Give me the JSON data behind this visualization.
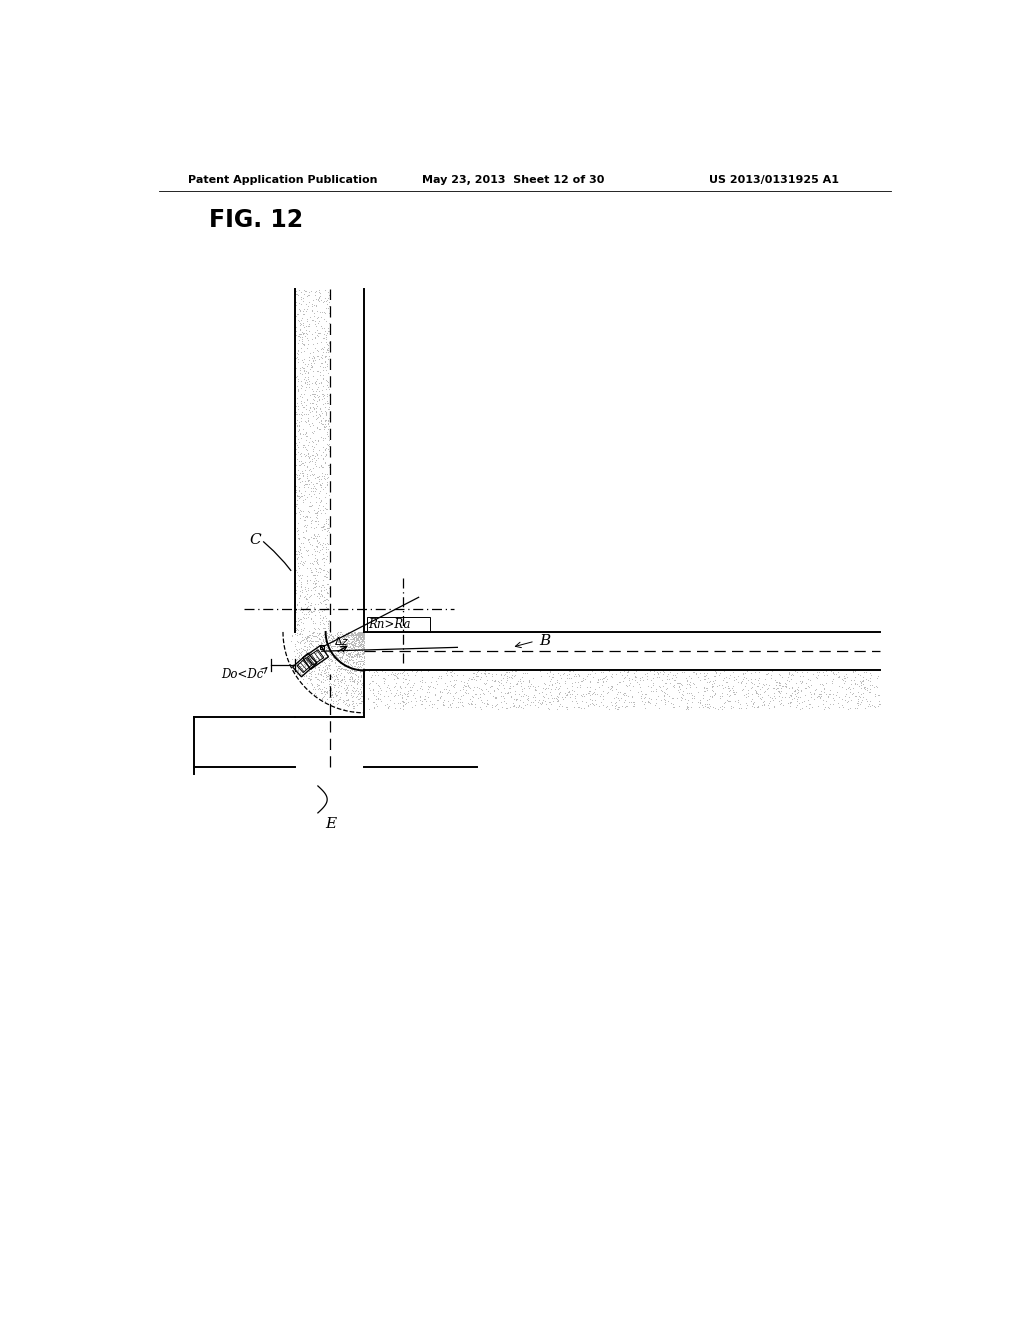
{
  "header_left": "Patent Application Publication",
  "header_middle": "May 23, 2013  Sheet 12 of 30",
  "header_right": "US 2013/0131925 A1",
  "fig_label": "FIG. 12",
  "label_C": "C",
  "label_B": "B",
  "label_E": "E",
  "label_Rn": "Rn>Ra",
  "label_Do": "Do<Dc",
  "background_color": "#ffffff",
  "line_color": "#000000",
  "dot_color": "#aaaaaa"
}
